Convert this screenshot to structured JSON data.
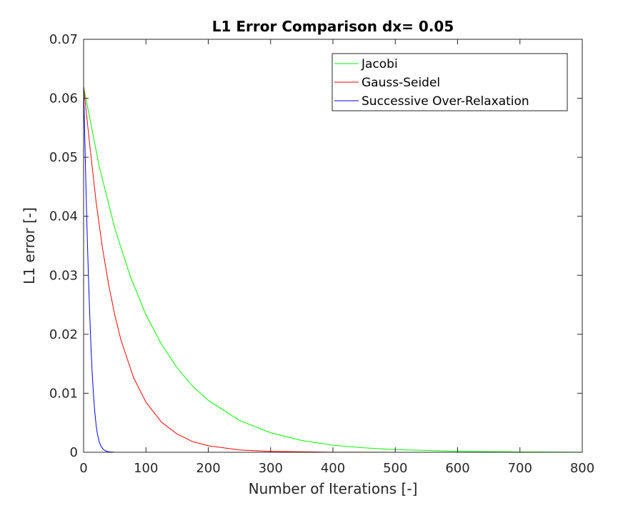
{
  "chart_data": {
    "type": "line",
    "title": "L1 Error Comparison dx= 0.05",
    "xlabel": "Number of Iterations [-]",
    "ylabel": "L1 error [-]",
    "xlim": [
      0,
      800
    ],
    "ylim": [
      0,
      0.07
    ],
    "x_ticks": [
      0,
      100,
      200,
      300,
      400,
      500,
      600,
      700,
      800
    ],
    "x_tick_labels": [
      "0",
      "100",
      "200",
      "300",
      "400",
      "500",
      "600",
      "700",
      "800"
    ],
    "y_ticks": [
      0,
      0.01,
      0.02,
      0.03,
      0.04,
      0.05,
      0.06,
      0.07
    ],
    "y_tick_labels": [
      "0",
      "0.01",
      "0.02",
      "0.03",
      "0.04",
      "0.05",
      "0.06",
      "0.07"
    ],
    "grid": false,
    "legend_position": "top-right",
    "series": [
      {
        "name": "Jacobi",
        "color": "#00ff00",
        "x": [
          0,
          25,
          50,
          75,
          100,
          125,
          150,
          175,
          200,
          250,
          300,
          350,
          400,
          450,
          500,
          600,
          700,
          800
        ],
        "y": [
          0.062,
          0.0485,
          0.038,
          0.0298,
          0.0233,
          0.0183,
          0.0143,
          0.0112,
          0.0088,
          0.0054,
          0.0033,
          0.002,
          0.0012,
          0.00075,
          0.00046,
          0.00017,
          6e-05,
          2e-05
        ]
      },
      {
        "name": "Gauss-Seidel",
        "color": "#ff0000",
        "x": [
          0,
          10,
          20,
          30,
          40,
          50,
          60,
          80,
          100,
          125,
          150,
          175,
          200,
          250,
          300,
          400,
          500,
          600,
          700,
          800
        ],
        "y": [
          0.062,
          0.052,
          0.0425,
          0.0348,
          0.0285,
          0.0233,
          0.019,
          0.0127,
          0.0085,
          0.0051,
          0.0031,
          0.0018,
          0.0011,
          0.0004,
          0.00015,
          2e-05,
          0.0,
          0.0,
          0.0,
          0.0
        ]
      },
      {
        "name": "Successive Over-Relaxation",
        "color": "#0000ff",
        "x": [
          0,
          2,
          4,
          6,
          8,
          10,
          12,
          14,
          16,
          18,
          20,
          22,
          25,
          28,
          32,
          36,
          40,
          50,
          100,
          200,
          400,
          800
        ],
        "y": [
          0.062,
          0.053,
          0.044,
          0.036,
          0.029,
          0.023,
          0.0175,
          0.013,
          0.0095,
          0.0068,
          0.0047,
          0.0032,
          0.0018,
          0.001,
          0.00045,
          0.0002,
          8e-05,
          1e-05,
          0.0,
          0.0,
          0.0,
          0.0
        ]
      }
    ]
  }
}
